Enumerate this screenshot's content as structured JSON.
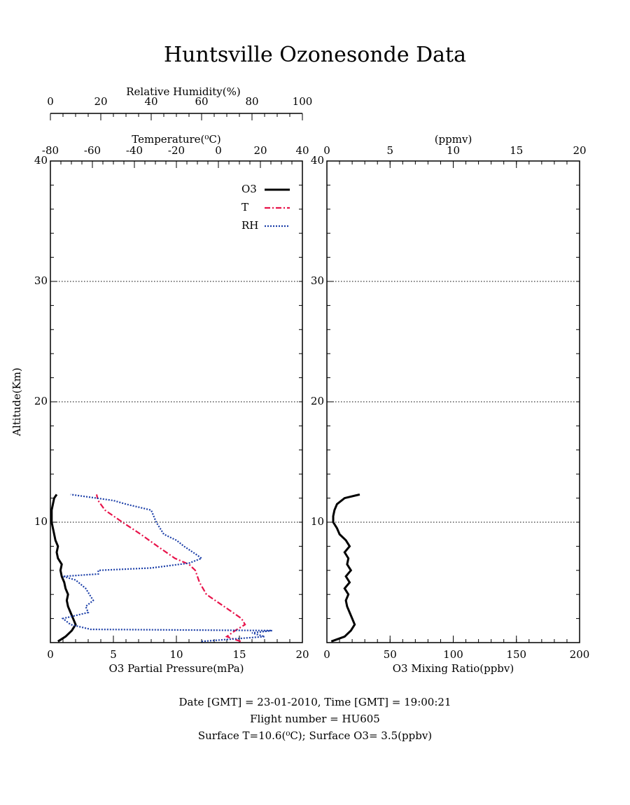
{
  "title": "Huntsville Ozonesonde Data",
  "footer": [
    "Date [GMT] = 23-01-2010,  Time [GMT] = 19:00:21",
    "Flight number = HU605",
    "Surface T=10.6(⁰C); Surface O3= 3.5(ppbv)"
  ],
  "chart_data": [
    {
      "type": "line",
      "ylabel": "Altitude(Km)",
      "xlabel": "O3 Partial Pressure(mPa)",
      "x2label": "Temperature(⁰C)",
      "x3label": "Relative Humidity(%)",
      "ylim": [
        0,
        40
      ],
      "yticks": [
        10,
        20,
        30,
        40
      ],
      "yminor": 2,
      "xlim": [
        0,
        20
      ],
      "xticks": [
        0,
        5,
        10,
        15,
        20
      ],
      "xminor": 1,
      "x2lim": [
        -80,
        40
      ],
      "x2ticks": [
        -80,
        -60,
        -40,
        -20,
        0,
        20,
        40
      ],
      "x2minor": 5,
      "x3lim": [
        0,
        100
      ],
      "x3ticks": [
        0,
        20,
        40,
        60,
        80,
        100
      ],
      "x3minor": 5,
      "grid": true,
      "legend": "upper right",
      "series": [
        {
          "name": "O3",
          "color": "#000000",
          "style": "solid",
          "axis": "x",
          "altitude": [
            0.1,
            0.5,
            1,
            1.5,
            2,
            2.5,
            3,
            3.5,
            4,
            4.5,
            5,
            5.5,
            6,
            6.5,
            7,
            7.5,
            8,
            8.5,
            9,
            9.5,
            10,
            10.5,
            11,
            11.5,
            12,
            12.3
          ],
          "values": [
            0.6,
            1.2,
            1.7,
            2.0,
            1.8,
            1.6,
            1.4,
            1.3,
            1.4,
            1.2,
            1.1,
            0.9,
            0.8,
            0.9,
            0.6,
            0.5,
            0.6,
            0.4,
            0.3,
            0.2,
            0.1,
            0.1,
            0.1,
            0.2,
            0.3,
            0.5
          ]
        },
        {
          "name": "T",
          "color": "#e8134a",
          "style": "dashdot",
          "axis": "x2",
          "altitude": [
            0.1,
            0.5,
            1,
            1.5,
            2,
            3,
            4,
            5,
            6,
            6.5,
            7,
            8,
            9,
            10,
            11,
            11.8,
            12.3
          ],
          "values": [
            10.6,
            4,
            8,
            12.7,
            11,
            2.7,
            -5.7,
            -9,
            -11,
            -14,
            -20.7,
            -29,
            -37,
            -45.7,
            -54,
            -57.3,
            -58
          ]
        },
        {
          "name": "RH",
          "color": "#1c3fa8",
          "style": "dotted",
          "axis": "x3",
          "altitude": [
            0.1,
            0.5,
            0.8,
            1.0,
            1.1,
            1.5,
            2.0,
            2.5,
            3.0,
            3.5,
            4.5,
            5.2,
            5.5,
            5.7,
            6.0,
            6.2,
            6.6,
            7.0,
            7.3,
            8.0,
            8.5,
            9.0,
            10.0,
            11.0,
            11.5,
            11.8,
            12.3
          ],
          "values": [
            60,
            85,
            80,
            88,
            16,
            8,
            5,
            15,
            14,
            17,
            14,
            10,
            5,
            19,
            19,
            40,
            55,
            60,
            58,
            53,
            50,
            45,
            42,
            40,
            30,
            25,
            8
          ]
        }
      ]
    },
    {
      "type": "line",
      "xlabel": "O3 Mixing Ratio(ppbv)",
      "x2label": "(ppmv)",
      "ylim": [
        0,
        40
      ],
      "yticks": [
        10,
        20,
        30,
        40
      ],
      "yminor": 2,
      "xlim": [
        0,
        200
      ],
      "xticks": [
        0,
        50,
        100,
        150,
        200
      ],
      "xminor": 10,
      "x2lim": [
        0,
        20
      ],
      "x2ticks": [
        0,
        5,
        10,
        15,
        20
      ],
      "x2minor": 1,
      "grid": true,
      "series": [
        {
          "color": "#000000",
          "style": "solid",
          "axis": "x",
          "altitude": [
            0.1,
            0.5,
            1,
            1.5,
            2,
            2.5,
            3,
            3.5,
            4,
            4.5,
            5,
            5.5,
            6,
            6.5,
            7,
            7.5,
            8,
            8.5,
            9,
            9.5,
            10,
            10.5,
            11,
            11.5,
            12,
            12.3
          ],
          "values": [
            3.5,
            14,
            19,
            22,
            20,
            18,
            16,
            15,
            17,
            14,
            18,
            15,
            19,
            16,
            17,
            14,
            18,
            15,
            10,
            8,
            5,
            5,
            6,
            8,
            14,
            26
          ]
        }
      ]
    }
  ]
}
